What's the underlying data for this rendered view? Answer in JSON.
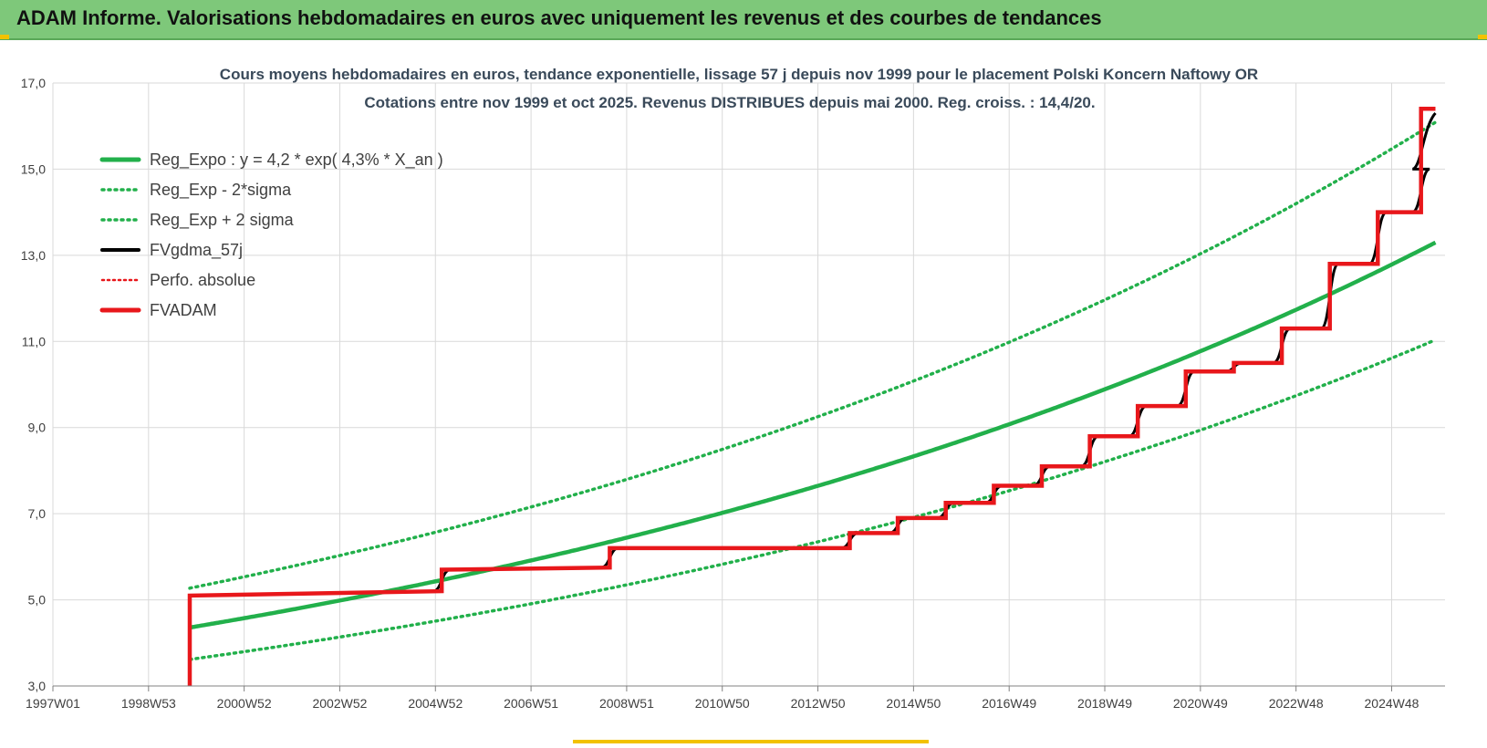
{
  "banner": {
    "title": "ADAM Informe. Valorisations hebdomadaires en euros avec uniquement les revenus et des courbes de tendances"
  },
  "colors": {
    "banner_bg": "#7ec87a",
    "regression": "#22b04b",
    "fvgdma": "#000000",
    "fvadam": "#e8171b",
    "perfo": "#e8171b",
    "grid": "#d9d9d9"
  },
  "chart_data": {
    "type": "line",
    "title": "Cours moyens hebdomadaires en euros, tendance exponentielle, lissage 57 j depuis nov 1999 pour le placement Polski Koncern Naftowy OR",
    "subtitle": "Cotations entre nov 1999 et oct 2025. Revenus DISTRIBUES depuis mai 2000. Reg. croiss. : 14,4/20.",
    "xlabel": "",
    "ylabel": "",
    "ylim": [
      3.0,
      17.0
    ],
    "y_ticks": [
      "3,0",
      "5,0",
      "7,0",
      "9,0",
      "11,0",
      "13,0",
      "15,0",
      "17,0"
    ],
    "x_tick_labels": [
      "1997W01",
      "1998W53",
      "2000W52",
      "2002W52",
      "2004W52",
      "2006W51",
      "2008W51",
      "2010W50",
      "2012W50",
      "2014W50",
      "2016W49",
      "2018W49",
      "2020W49",
      "2022W48",
      "2024W48"
    ],
    "x_range": [
      1997.0,
      2026.0
    ],
    "grid": true,
    "legend_position": "top-left",
    "regression": {
      "a": 4.2,
      "rate": 0.043,
      "start": 1999.85,
      "end": 2025.8
    },
    "series": [
      {
        "name": "Reg_Expo : y = 4,2 * exp( 4,3% *  X_an )",
        "style": "solid-green"
      },
      {
        "name": "Reg_Exp - 2*sigma",
        "style": "dotted-green",
        "factor": 0.83
      },
      {
        "name": "Reg_Exp + 2 sigma",
        "style": "dotted-green",
        "factor": 1.21
      },
      {
        "name": "FVgdma_57j",
        "style": "solid-black"
      },
      {
        "name": "Perfo. absolue",
        "style": "dotted-red"
      },
      {
        "name": "FVADAM",
        "style": "solid-red",
        "x": [
          1999.85,
          1999.85,
          2005.1,
          2005.1,
          2008.6,
          2008.6,
          2013.6,
          2013.6,
          2014.6,
          2014.6,
          2015.6,
          2015.6,
          2016.6,
          2016.6,
          2017.6,
          2017.6,
          2018.6,
          2018.6,
          2019.6,
          2019.6,
          2020.6,
          2020.6,
          2021.6,
          2021.6,
          2022.6,
          2022.6,
          2023.6,
          2023.6,
          2024.6,
          2024.6,
          2025.5,
          2025.5,
          2025.8
        ],
        "y": [
          3.0,
          5.1,
          5.2,
          5.7,
          5.75,
          6.2,
          6.2,
          6.55,
          6.55,
          6.9,
          6.9,
          7.25,
          7.25,
          7.65,
          7.65,
          8.1,
          8.1,
          8.8,
          8.8,
          9.5,
          9.5,
          10.3,
          10.3,
          10.5,
          10.5,
          11.3,
          11.3,
          12.8,
          12.8,
          14.0,
          14.0,
          15.0,
          15.0
        ]
      }
    ],
    "fvadam_final": {
      "x": [
        2025.5,
        2025.5,
        2025.8
      ],
      "y": [
        15.0,
        16.4,
        16.4
      ]
    }
  }
}
